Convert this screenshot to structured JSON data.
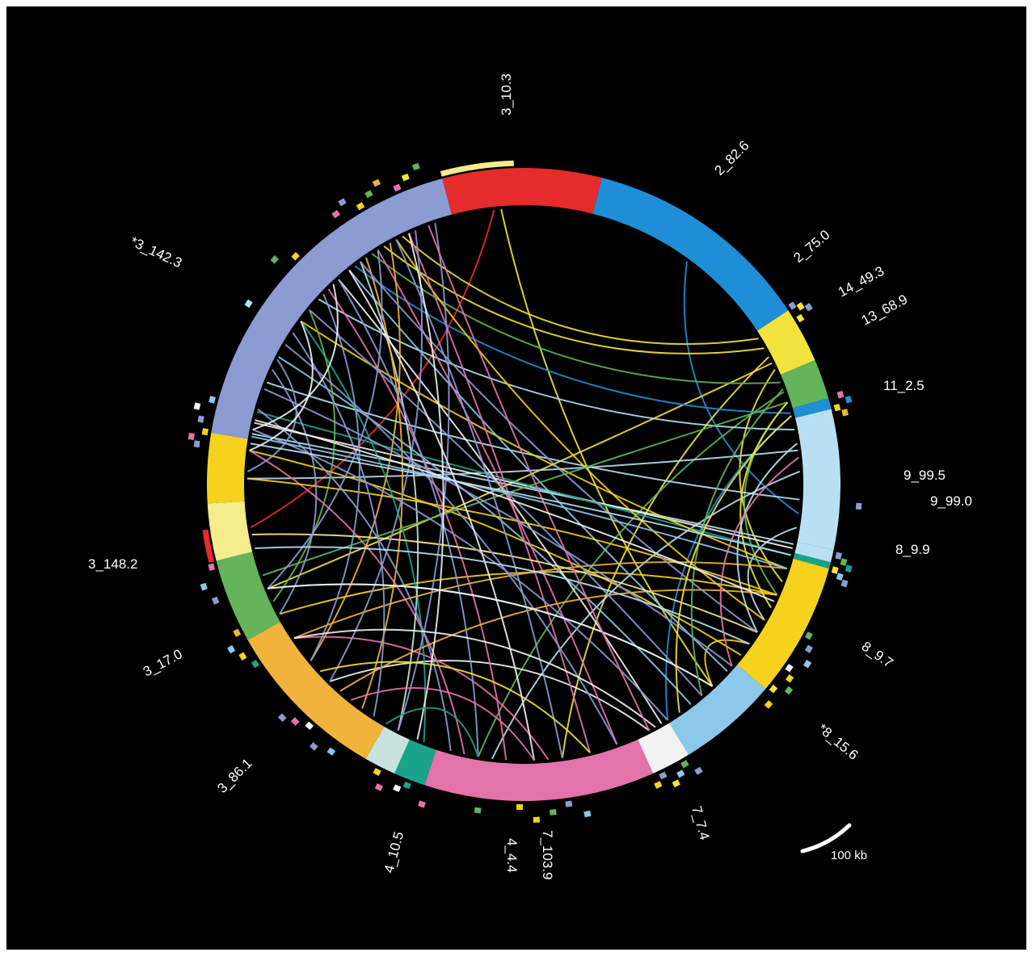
{
  "figure": {
    "segment_labels": [
      "3_10.3",
      "2_82.6",
      "2_75.0",
      "14_49.3",
      "13_68.9",
      "11_2.5",
      "9_99.5",
      "9_99.0",
      "8_9.9",
      "8_9.7",
      "*8_15.6",
      "7_7.4",
      "7_103.9",
      "4_4.4",
      "4_10.5",
      "3_86.1",
      "3_17.0",
      "3_148.2",
      "*3_142.3"
    ],
    "scale_bar_label": "100 kb"
  },
  "colors": {
    "background": "#000000",
    "red": "#e52b2b",
    "blue": "#1e8fd6",
    "yellow": "#f2e33c",
    "green": "#63b45a",
    "light_blue": "#b9e0f2",
    "gold": "#f5d21e",
    "sky_blue": "#8cc8ea",
    "white": "#f2f2f2",
    "pink": "#e373ab",
    "teal": "#1aa38a",
    "pale_teal": "#c8e3dd",
    "orange": "#f0b43c",
    "pale_yellow": "#f5ec8c",
    "lavender": "#8c9bd2"
  },
  "ring_segments": [
    {
      "label": "3_10.3",
      "color": "red",
      "start": 0,
      "end": 100
    },
    {
      "label": "2_82.6",
      "color": "blue",
      "start": 100,
      "end": 245
    },
    {
      "label": "2_75.0",
      "color": "yellow",
      "start": 245,
      "end": 280
    },
    {
      "label": "14_49.3",
      "color": "green",
      "start": 280,
      "end": 305
    },
    {
      "label": "13_68.9",
      "color": "blue",
      "start": 305,
      "end": 312
    },
    {
      "label": "11_2.5",
      "color": "light_blue",
      "start": 312,
      "end": 400
    },
    {
      "label": "9_99.5",
      "color": "light_blue",
      "start": 400,
      "end": 408
    },
    {
      "label": "9_99.0",
      "color": "teal",
      "start": 408,
      "end": 412
    },
    {
      "label": "8_9.9",
      "color": "gold",
      "start": 412,
      "end": 497
    },
    {
      "label": "8_9.7",
      "color": "sky_blue",
      "start": 497,
      "end": 560
    },
    {
      "label": "*8_15.6",
      "color": "white",
      "start": 560,
      "end": 585
    },
    {
      "label": "7_7.4",
      "color": "pink",
      "start": 585,
      "end": 730
    },
    {
      "label": "7_103.9",
      "color": "teal",
      "start": 730,
      "end": 750
    },
    {
      "label": "4_4.4",
      "color": "pale_teal",
      "start": 750,
      "end": 770
    },
    {
      "label": "4_10.5",
      "color": "orange",
      "start": 770,
      "end": 875
    },
    {
      "label": "3_86.1",
      "color": "green",
      "start": 875,
      "end": 928
    },
    {
      "label": "3_17.0",
      "color": "pale_yellow",
      "start": 928,
      "end": 964
    },
    {
      "label": "3_148.2",
      "color": "gold",
      "start": 964,
      "end": 1008
    },
    {
      "label": "*3_142.3",
      "color": "lavender",
      "start": 1008,
      "end": 1233
    }
  ],
  "links": [
    {
      "from": 30,
      "to": 945,
      "color": "red"
    },
    {
      "from": 35,
      "to": 520,
      "color": "yellow"
    },
    {
      "from": 175,
      "to": 380,
      "color": "blue"
    },
    {
      "from": 250,
      "to": 1195,
      "color": "yellow"
    },
    {
      "from": 258,
      "to": 1180,
      "color": "yellow"
    },
    {
      "from": 265,
      "to": 640,
      "color": "yellow"
    },
    {
      "from": 270,
      "to": 900,
      "color": "yellow"
    },
    {
      "from": 275,
      "to": 430,
      "color": "yellow"
    },
    {
      "from": 285,
      "to": 1170,
      "color": "green"
    },
    {
      "from": 292,
      "to": 700,
      "color": "green"
    },
    {
      "from": 300,
      "to": 440,
      "color": "green"
    },
    {
      "from": 308,
      "to": 1155,
      "color": "blue"
    },
    {
      "from": 310,
      "to": 560,
      "color": "blue"
    },
    {
      "from": 320,
      "to": 1120,
      "color": "light_blue"
    },
    {
      "from": 335,
      "to": 980,
      "color": "light_blue"
    },
    {
      "from": 350,
      "to": 690,
      "color": "light_blue"
    },
    {
      "from": 370,
      "to": 1050,
      "color": "light_blue"
    },
    {
      "from": 390,
      "to": 460,
      "color": "light_blue"
    },
    {
      "from": 402,
      "to": 1012,
      "color": "light_blue"
    },
    {
      "from": 405,
      "to": 1020,
      "color": "white"
    },
    {
      "from": 410,
      "to": 1028,
      "color": "teal"
    },
    {
      "from": 420,
      "to": 1100,
      "color": "gold"
    },
    {
      "from": 440,
      "to": 880,
      "color": "gold"
    },
    {
      "from": 460,
      "to": 1190,
      "color": "gold"
    },
    {
      "from": 480,
      "to": 520,
      "color": "gold"
    },
    {
      "from": 490,
      "to": 1000,
      "color": "gold"
    },
    {
      "from": 505,
      "to": 1150,
      "color": "sky_blue"
    },
    {
      "from": 520,
      "to": 900,
      "color": "sky_blue"
    },
    {
      "from": 540,
      "to": 1070,
      "color": "sky_blue"
    },
    {
      "from": 565,
      "to": 1140,
      "color": "white"
    },
    {
      "from": 575,
      "to": 820,
      "color": "white"
    },
    {
      "from": 600,
      "to": 1175,
      "color": "pink"
    },
    {
      "from": 620,
      "to": 1200,
      "color": "pink"
    },
    {
      "from": 650,
      "to": 860,
      "color": "pink"
    },
    {
      "from": 680,
      "to": 1130,
      "color": "pink"
    },
    {
      "from": 710,
      "to": 1000,
      "color": "pink"
    },
    {
      "from": 740,
      "to": 1100,
      "color": "teal"
    },
    {
      "from": 760,
      "to": 1160,
      "color": "pale_teal"
    },
    {
      "from": 790,
      "to": 1165,
      "color": "orange"
    },
    {
      "from": 810,
      "to": 440,
      "color": "orange"
    },
    {
      "from": 840,
      "to": 1185,
      "color": "orange"
    },
    {
      "from": 860,
      "to": 420,
      "color": "orange"
    },
    {
      "from": 890,
      "to": 1110,
      "color": "green"
    },
    {
      "from": 910,
      "to": 300,
      "color": "green"
    },
    {
      "from": 940,
      "to": 470,
      "color": "pale_yellow"
    },
    {
      "from": 980,
      "to": 440,
      "color": "gold"
    },
    {
      "from": 1015,
      "to": 560,
      "color": "lavender"
    },
    {
      "from": 1030,
      "to": 720,
      "color": "lavender"
    },
    {
      "from": 1045,
      "to": 500,
      "color": "lavender"
    },
    {
      "from": 1060,
      "to": 880,
      "color": "lavender"
    },
    {
      "from": 1080,
      "to": 600,
      "color": "lavender"
    },
    {
      "from": 1090,
      "to": 780,
      "color": "lavender"
    },
    {
      "from": 1110,
      "to": 530,
      "color": "lavender"
    },
    {
      "from": 1125,
      "to": 840,
      "color": "lavender"
    },
    {
      "from": 1140,
      "to": 700,
      "color": "lavender"
    },
    {
      "from": 1160,
      "to": 470,
      "color": "lavender"
    },
    {
      "from": 1175,
      "to": 900,
      "color": "lavender"
    },
    {
      "from": 1190,
      "to": 640,
      "color": "lavender"
    },
    {
      "from": 1205,
      "to": 820,
      "color": "lavender"
    },
    {
      "from": 1220,
      "to": 760,
      "color": "lavender"
    },
    {
      "from": 1068,
      "to": 985,
      "color": "lavender"
    },
    {
      "from": 1100,
      "to": 1000,
      "color": "white"
    },
    {
      "from": 1135,
      "to": 1015,
      "color": "white"
    },
    {
      "from": 1150,
      "to": 660,
      "color": "white"
    },
    {
      "from": 1200,
      "to": 745,
      "color": "white"
    },
    {
      "from": 860,
      "to": 570,
      "color": "white"
    },
    {
      "from": 900,
      "to": 520,
      "color": "white"
    },
    {
      "from": 930,
      "to": 480,
      "color": "light_blue"
    },
    {
      "from": 770,
      "to": 700,
      "color": "teal"
    },
    {
      "from": 800,
      "to": 660,
      "color": "pink"
    },
    {
      "from": 830,
      "to": 620,
      "color": "yellow"
    },
    {
      "from": 450,
      "to": 300,
      "color": "yellow"
    },
    {
      "from": 470,
      "to": 330,
      "color": "light_blue"
    },
    {
      "from": 500,
      "to": 340,
      "color": "pink"
    },
    {
      "from": 530,
      "to": 290,
      "color": "green"
    },
    {
      "from": 550,
      "to": 310,
      "color": "yellow"
    },
    {
      "from": 575,
      "to": 1215,
      "color": "pink"
    },
    {
      "from": 1010,
      "to": 420,
      "color": "sky_blue"
    },
    {
      "from": 1022,
      "to": 445,
      "color": "white"
    },
    {
      "from": 1005,
      "to": 410,
      "color": "light_blue"
    }
  ],
  "outer_ticks": [
    {
      "pos": 244,
      "color": "lavender"
    },
    {
      "pos": 247,
      "color": "yellow"
    },
    {
      "pos": 250,
      "color": "lavender"
    },
    {
      "pos": 253,
      "color": "yellow"
    },
    {
      "pos": 305,
      "color": "pink"
    },
    {
      "pos": 309,
      "color": "blue"
    },
    {
      "pos": 312,
      "color": "gold"
    },
    {
      "pos": 316,
      "color": "orange"
    },
    {
      "pos": 372,
      "color": "lavender"
    },
    {
      "pos": 403,
      "color": "lavender"
    },
    {
      "pos": 406,
      "color": "green"
    },
    {
      "pos": 409,
      "color": "teal"
    },
    {
      "pos": 412,
      "color": "yellow"
    },
    {
      "pos": 415,
      "color": "sky_blue"
    },
    {
      "pos": 418,
      "color": "lavender"
    },
    {
      "pos": 455,
      "color": "green"
    },
    {
      "pos": 462,
      "color": "lavender"
    },
    {
      "pos": 470,
      "color": "sky_blue"
    },
    {
      "pos": 478,
      "color": "white"
    },
    {
      "pos": 483,
      "color": "gold"
    },
    {
      "pos": 489,
      "color": "green"
    },
    {
      "pos": 494,
      "color": "yellow"
    },
    {
      "pos": 503,
      "color": "gold"
    },
    {
      "pos": 560,
      "color": "lavender"
    },
    {
      "pos": 565,
      "color": "green"
    },
    {
      "pos": 570,
      "color": "sky_blue"
    },
    {
      "pos": 575,
      "color": "yellow"
    },
    {
      "pos": 580,
      "color": "lavender"
    },
    {
      "pos": 585,
      "color": "gold"
    },
    {
      "pos": 630,
      "color": "sky_blue"
    },
    {
      "pos": 640,
      "color": "lavender"
    },
    {
      "pos": 650,
      "color": "green"
    },
    {
      "pos": 660,
      "color": "gold"
    },
    {
      "pos": 670,
      "color": "gold"
    },
    {
      "pos": 695,
      "color": "green"
    },
    {
      "pos": 728,
      "color": "pink"
    },
    {
      "pos": 740,
      "color": "teal"
    },
    {
      "pos": 745,
      "color": "white"
    },
    {
      "pos": 755,
      "color": "pink"
    },
    {
      "pos": 760,
      "color": "gold"
    },
    {
      "pos": 790,
      "color": "sky_blue"
    },
    {
      "pos": 800,
      "color": "lavender"
    },
    {
      "pos": 810,
      "color": "white"
    },
    {
      "pos": 818,
      "color": "pink"
    },
    {
      "pos": 825,
      "color": "lavender"
    },
    {
      "pos": 860,
      "color": "teal"
    },
    {
      "pos": 868,
      "color": "gold"
    },
    {
      "pos": 875,
      "color": "sky_blue"
    },
    {
      "pos": 882,
      "color": "orange"
    },
    {
      "pos": 905,
      "color": "lavender"
    },
    {
      "pos": 915,
      "color": "sky_blue"
    },
    {
      "pos": 925,
      "color": "pink"
    },
    {
      "pos": 1000,
      "color": "lavender"
    },
    {
      "pos": 1004,
      "color": "pink"
    },
    {
      "pos": 1008,
      "color": "gold"
    },
    {
      "pos": 1015,
      "color": "lavender"
    },
    {
      "pos": 1022,
      "color": "white"
    },
    {
      "pos": 1028,
      "color": "sky_blue"
    },
    {
      "pos": 1090,
      "color": "light_blue"
    },
    {
      "pos": 1120,
      "color": "green"
    },
    {
      "pos": 1130,
      "color": "gold"
    },
    {
      "pos": 1165,
      "color": "pink"
    },
    {
      "pos": 1172,
      "color": "lavender"
    },
    {
      "pos": 1180,
      "color": "gold"
    },
    {
      "pos": 1188,
      "color": "green"
    },
    {
      "pos": 1195,
      "color": "orange"
    },
    {
      "pos": 1205,
      "color": "pink"
    },
    {
      "pos": 1212,
      "color": "yellow"
    },
    {
      "pos": 1220,
      "color": "green"
    }
  ],
  "highlight_arcs": [
    {
      "start": 0,
      "end": 45,
      "color": "pale_yellow"
    },
    {
      "start": 928,
      "end": 948,
      "color": "red"
    }
  ]
}
